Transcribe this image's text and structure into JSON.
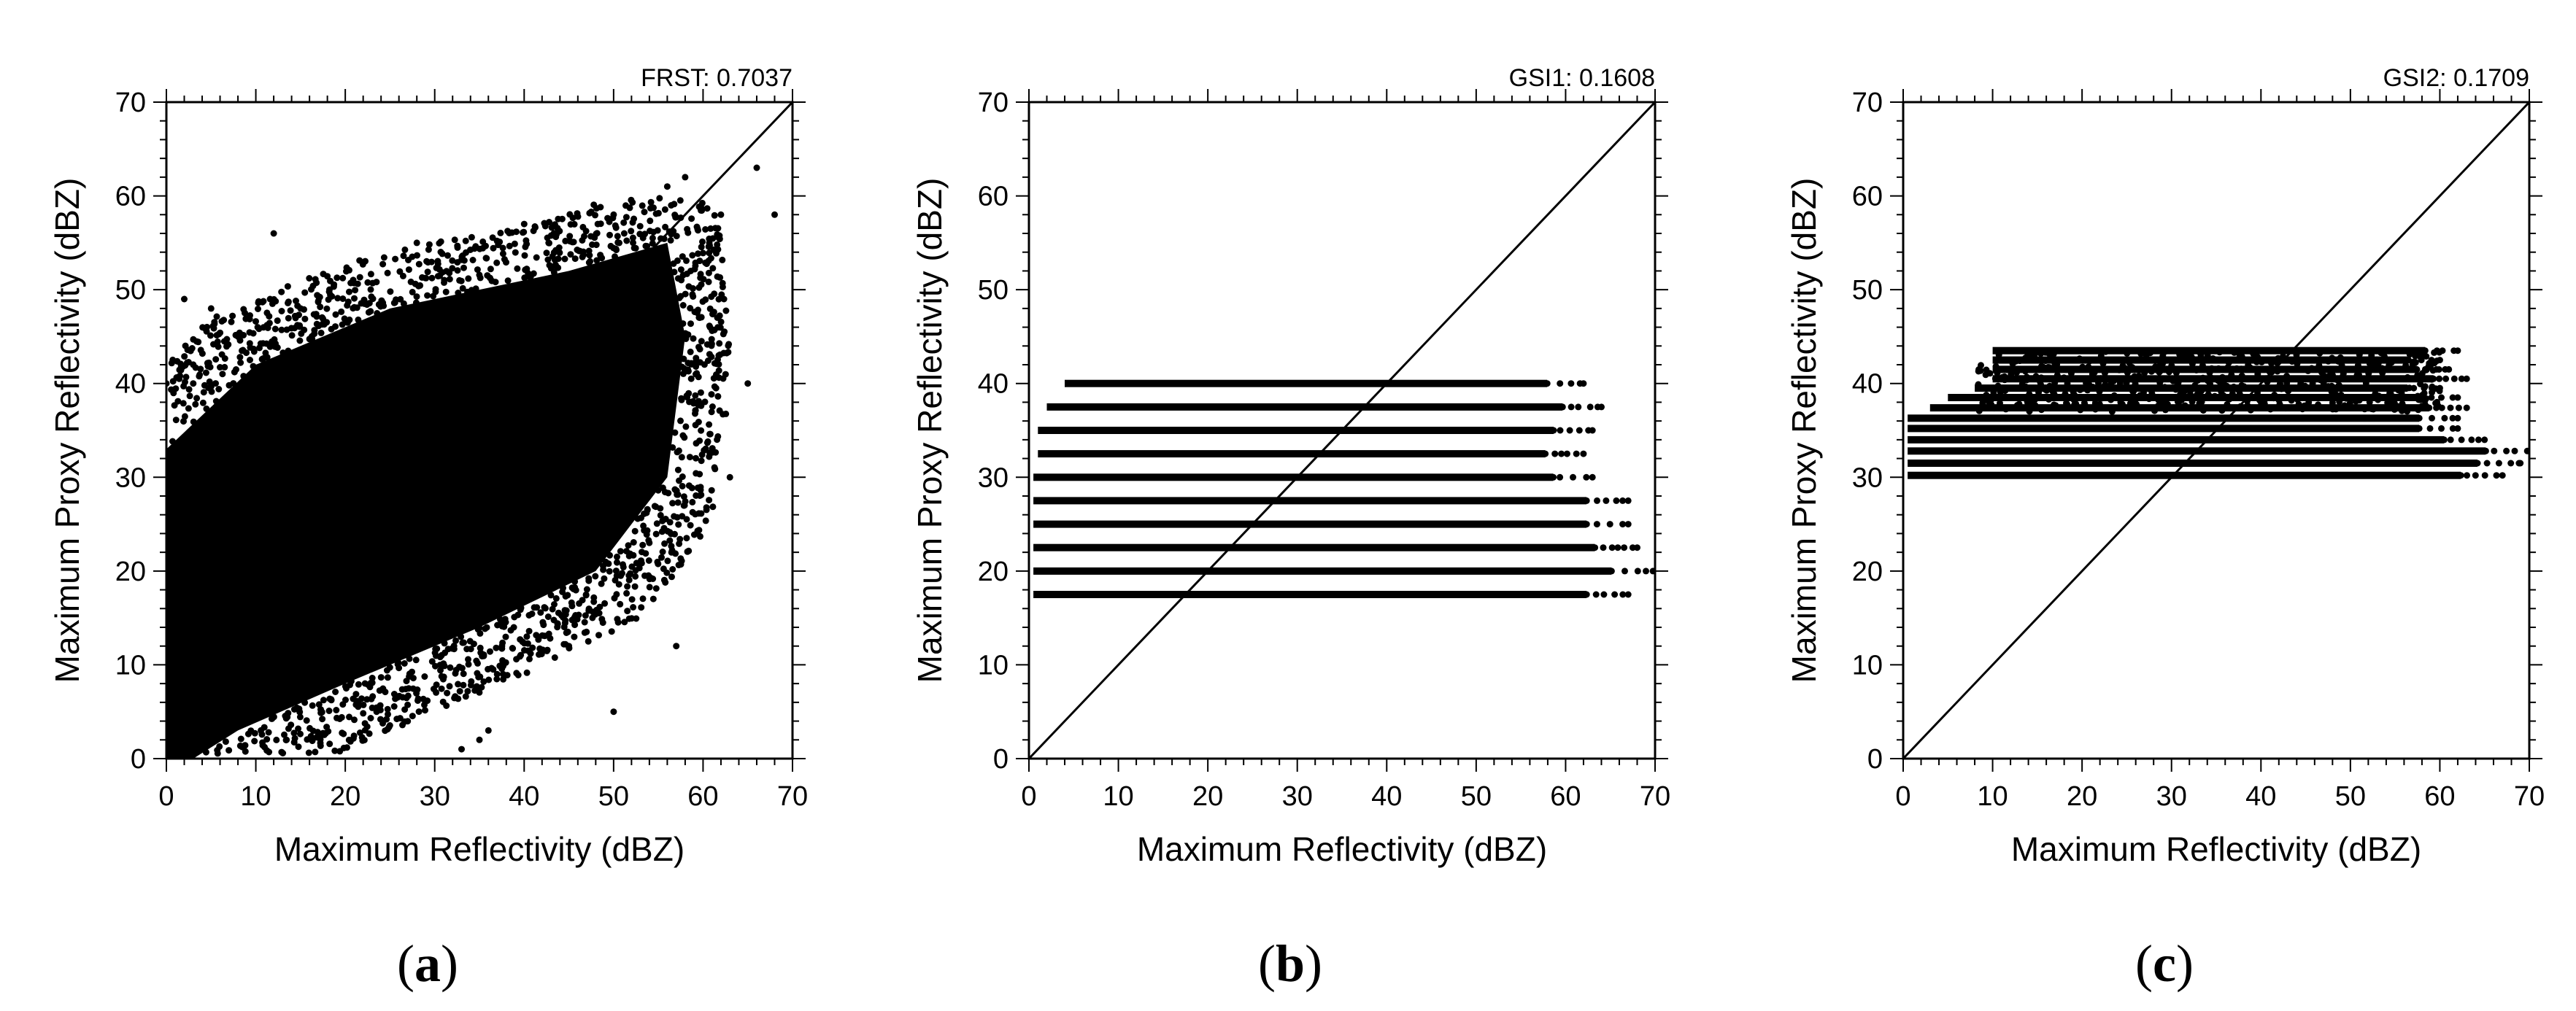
{
  "chart_data": [
    {
      "type": "scatter",
      "panel": "a",
      "panel_label": "(a)",
      "title": "FRST: 0.7037",
      "xlabel": "Maximum Reflectivity (dBZ)",
      "ylabel": "Maximum Proxy Reflectivity (dBZ)",
      "xlim": [
        0,
        70
      ],
      "ylim": [
        0,
        70
      ],
      "xticks": [
        0,
        10,
        20,
        30,
        40,
        50,
        60,
        70
      ],
      "yticks": [
        0,
        10,
        20,
        30,
        40,
        50,
        60,
        70
      ],
      "reference_line": [
        [
          0,
          0
        ],
        [
          70,
          70
        ]
      ],
      "point_color": "#000000",
      "distribution": {
        "kind": "dense-cloud",
        "dense_region": [
          [
            0,
            0
          ],
          [
            0,
            33
          ],
          [
            10,
            42
          ],
          [
            25,
            48
          ],
          [
            45,
            52
          ],
          [
            56,
            55
          ],
          [
            58,
            45
          ],
          [
            56,
            30
          ],
          [
            48,
            20
          ],
          [
            35,
            14
          ],
          [
            20,
            8
          ],
          [
            8,
            3
          ],
          [
            3,
            0
          ]
        ],
        "scatter_outliers": [
          [
            2,
            49
          ],
          [
            5,
            48
          ],
          [
            8,
            45
          ],
          [
            12,
            56
          ],
          [
            15,
            48
          ],
          [
            28,
            55
          ],
          [
            40,
            57
          ],
          [
            50,
            58
          ],
          [
            56,
            61
          ],
          [
            58,
            62
          ],
          [
            62,
            58
          ],
          [
            66,
            63
          ],
          [
            68,
            58
          ],
          [
            65,
            40
          ],
          [
            63,
            30
          ],
          [
            57,
            12
          ],
          [
            50,
            5
          ],
          [
            45,
            12
          ],
          [
            40,
            18
          ],
          [
            35,
            2
          ],
          [
            33,
            1
          ],
          [
            36,
            3
          ],
          [
            10,
            5
          ],
          [
            5,
            2
          ],
          [
            2,
            1
          ],
          [
            1,
            28
          ],
          [
            0,
            40
          ],
          [
            3,
            40
          ]
        ]
      }
    },
    {
      "type": "scatter",
      "panel": "b",
      "panel_label": "(b)",
      "title": "GSI1: 0.1608",
      "xlabel": "Maximum Reflectivity (dBZ)",
      "ylabel": "Maximum Proxy Reflectivity (dBZ)",
      "xlim": [
        0,
        70
      ],
      "ylim": [
        0,
        70
      ],
      "xticks": [
        0,
        10,
        20,
        30,
        40,
        50,
        60,
        70
      ],
      "yticks": [
        0,
        10,
        20,
        30,
        40,
        50,
        60,
        70
      ],
      "reference_line": [
        [
          0,
          0
        ],
        [
          70,
          70
        ]
      ],
      "point_color": "#000000",
      "distribution": {
        "kind": "discrete-levels",
        "levels": [
          {
            "y": 17.5,
            "x_range": [
              0.5,
              67
            ]
          },
          {
            "y": 20,
            "x_range": [
              0.5,
              70
            ]
          },
          {
            "y": 22.5,
            "x_range": [
              0.5,
              68
            ]
          },
          {
            "y": 25,
            "x_range": [
              0.5,
              67
            ]
          },
          {
            "y": 27.5,
            "x_range": [
              0.5,
              67
            ]
          },
          {
            "y": 30,
            "x_range": [
              0.5,
              63
            ]
          },
          {
            "y": 32.5,
            "x_range": [
              1,
              62
            ]
          },
          {
            "y": 35,
            "x_range": [
              1,
              63
            ]
          },
          {
            "y": 37.5,
            "x_range": [
              2,
              64
            ]
          },
          {
            "y": 40,
            "x_range": [
              4,
              62
            ]
          }
        ]
      }
    },
    {
      "type": "scatter",
      "panel": "c",
      "panel_label": "(c)",
      "title": "GSI2: 0.1709",
      "xlabel": "Maximum Reflectivity (dBZ)",
      "ylabel": "Maximum Proxy Reflectivity (dBZ)",
      "xlim": [
        0,
        70
      ],
      "ylim": [
        0,
        70
      ],
      "xticks": [
        0,
        10,
        20,
        30,
        40,
        50,
        60,
        70
      ],
      "yticks": [
        0,
        10,
        20,
        30,
        40,
        50,
        60,
        70
      ],
      "reference_line": [
        [
          0,
          0
        ],
        [
          70,
          70
        ]
      ],
      "point_color": "#000000",
      "distribution": {
        "kind": "discrete-levels",
        "levels": [
          {
            "y": 30.2,
            "x_range": [
              0.5,
              67
            ]
          },
          {
            "y": 31.5,
            "x_range": [
              0.5,
              69
            ]
          },
          {
            "y": 32.8,
            "x_range": [
              0.5,
              70
            ]
          },
          {
            "y": 34.0,
            "x_range": [
              0.5,
              65
            ]
          },
          {
            "y": 35.2,
            "x_range": [
              0.5,
              62
            ]
          },
          {
            "y": 36.3,
            "x_range": [
              0.5,
              62
            ]
          },
          {
            "y": 37.4,
            "x_range": [
              3,
              63
            ]
          },
          {
            "y": 38.5,
            "x_range": [
              5,
              62
            ]
          },
          {
            "y": 39.5,
            "x_range": [
              8,
              60
            ]
          },
          {
            "y": 40.5,
            "x_range": [
              10,
              63
            ]
          },
          {
            "y": 41.5,
            "x_range": [
              10,
              61
            ]
          },
          {
            "y": 42.5,
            "x_range": [
              10,
              60
            ]
          },
          {
            "y": 43.5,
            "x_range": [
              10,
              62
            ]
          }
        ]
      }
    }
  ]
}
